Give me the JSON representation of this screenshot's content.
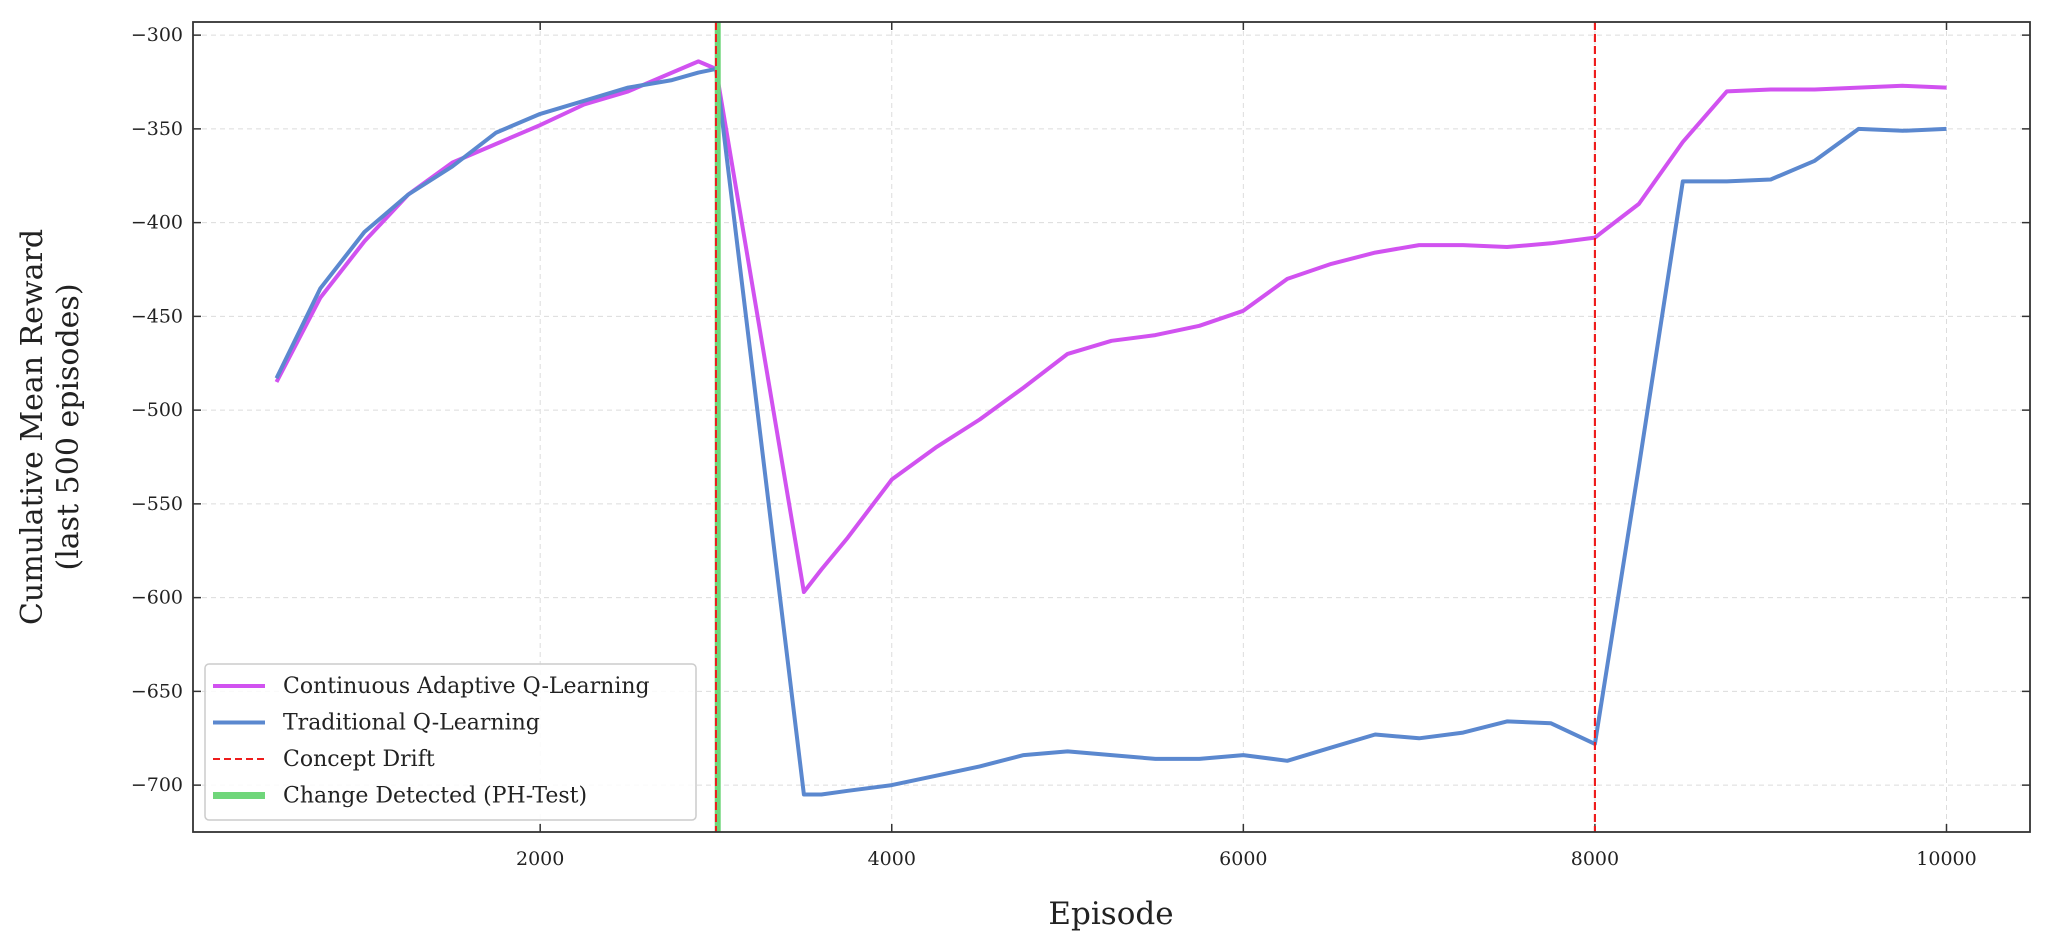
{
  "chart_data": {
    "type": "line",
    "xlabel": "Episode",
    "ylabel": [
      "Cumulative Mean Reward",
      "(last 500 episodes)"
    ],
    "x": [
      500,
      750,
      1000,
      1250,
      1500,
      1750,
      2000,
      2250,
      2500,
      2750,
      2900,
      3000,
      3500,
      3600,
      3750,
      4000,
      4250,
      4500,
      4750,
      5000,
      5250,
      5500,
      5750,
      6000,
      6250,
      6500,
      6750,
      7000,
      7250,
      7500,
      7750,
      8000,
      8250,
      8500,
      8750,
      9000,
      9250,
      9500,
      9750,
      10000
    ],
    "series": [
      {
        "name": "Continuous Adaptive Q-Learning",
        "color": "#d152f0",
        "values": [
          -485,
          -440,
          -410,
          -385,
          -368,
          -358,
          -348,
          -337,
          -330,
          -320,
          -314,
          -318,
          -597,
          -585,
          -568,
          -537,
          -520,
          -505,
          -488,
          -470,
          -463,
          -460,
          -455,
          -447,
          -430,
          -422,
          -416,
          -412,
          -412,
          -413,
          -411,
          -408,
          -390,
          -357,
          -330,
          -329,
          -329,
          -328,
          -327,
          -328
        ]
      },
      {
        "name": "Traditional Q-Learning",
        "color": "#5b88cf",
        "values": [
          -483,
          -435,
          -405,
          -385,
          -370,
          -352,
          -342,
          -335,
          -328,
          -324,
          -320,
          -318,
          -705,
          -705,
          -703,
          -700,
          -695,
          -690,
          -684,
          -682,
          -684,
          -686,
          -686,
          -684,
          -687,
          -680,
          -673,
          -675,
          -672,
          -666,
          -667,
          -678,
          -530,
          -378,
          -378,
          -377,
          -367,
          -350,
          -351,
          -350
        ]
      }
    ],
    "vlines": [
      {
        "name": "Concept Drift",
        "color": "#ee1c1c",
        "x": [
          3000,
          8000
        ]
      },
      {
        "name": "Change Detected (PH-Test)",
        "color": "#6fd67a",
        "x": [
          3010
        ]
      }
    ],
    "xlim": [
      25,
      10475
    ],
    "ylim": [
      -725,
      -293
    ],
    "xticks": [
      2000,
      4000,
      6000,
      8000,
      10000
    ],
    "yticks": [
      {
        "value": -700,
        "label": "−700"
      },
      {
        "value": -650,
        "label": "−650"
      },
      {
        "value": -600,
        "label": "−600"
      },
      {
        "value": -550,
        "label": "−550"
      },
      {
        "value": -500,
        "label": "−500"
      },
      {
        "value": -450,
        "label": "−450"
      },
      {
        "value": -400,
        "label": "−400"
      },
      {
        "value": -350,
        "label": "−350"
      },
      {
        "value": -300,
        "label": "−300"
      }
    ],
    "grid": true,
    "legend": "lower left"
  }
}
